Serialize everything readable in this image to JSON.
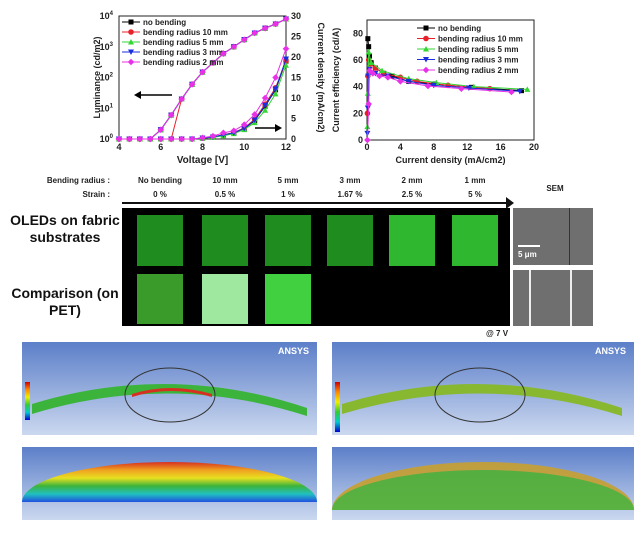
{
  "colors": {
    "no bending": "#000000",
    "bending radius 10 mm": "#e8202a",
    "bending radius 5 mm": "#33d633",
    "bending radius 3 mm": "#1a2ee0",
    "bending radius 2 mm": "#e830e8"
  },
  "chart_data": [
    {
      "type": "line",
      "xlabel": "Voltage [V]",
      "ylabel": "Luminance (cd/m2)",
      "y2label": "Current density (mA/cm2)",
      "xlim": [
        4,
        12
      ],
      "ylim": [
        1,
        10000
      ],
      "yscale": "log",
      "y2lim": [
        0,
        30
      ],
      "xticks": [
        "4",
        "6",
        "8",
        "10",
        "12"
      ],
      "yticks": [
        "10^0",
        "10^1",
        "10^2",
        "10^3",
        "10^4"
      ],
      "y2ticks": [
        "0",
        "5",
        "10",
        "15",
        "20",
        "25",
        "30"
      ],
      "legend": "top-left",
      "x": [
        4,
        4.5,
        5,
        5.5,
        6,
        6.5,
        7,
        7.5,
        8,
        8.5,
        9,
        9.5,
        10,
        10.5,
        11,
        11.5,
        12
      ],
      "series": [
        {
          "name": "no bending",
          "luminance": [
            1,
            1,
            1,
            1,
            2,
            6,
            20,
            60,
            150,
            300,
            600,
            1000,
            1700,
            2800,
            4000,
            5500,
            8000
          ],
          "current": [
            0,
            0,
            0,
            0,
            0,
            0,
            0,
            0,
            0.2,
            0.5,
            1,
            1.5,
            2.5,
            4.5,
            8,
            12,
            19
          ]
        },
        {
          "name": "bending radius 10 mm",
          "luminance": [
            1,
            1,
            1,
            1,
            1,
            1,
            20,
            60,
            150,
            300,
            600,
            1000,
            1700,
            2800,
            4000,
            5500,
            8000
          ],
          "current": [
            0,
            0,
            0,
            0,
            0,
            0,
            0,
            0,
            0.2,
            0.5,
            1,
            1.6,
            2.7,
            4.8,
            8.5,
            12.5,
            19
          ]
        },
        {
          "name": "bending radius 5 mm",
          "luminance": [
            1,
            1,
            1,
            1,
            2,
            6,
            20,
            60,
            150,
            300,
            600,
            1000,
            1700,
            2800,
            4000,
            5500,
            8000
          ],
          "current": [
            0,
            0,
            0,
            0,
            0,
            0,
            0,
            0,
            0.2,
            0.4,
            0.8,
            1.3,
            2.3,
            4,
            7,
            11,
            18
          ]
        },
        {
          "name": "bending radius 3 mm",
          "luminance": [
            1,
            1,
            1,
            1,
            2,
            6,
            20,
            60,
            150,
            300,
            600,
            1000,
            1700,
            2800,
            4000,
            5500,
            8000
          ],
          "current": [
            0,
            0,
            0,
            0,
            0,
            0,
            0,
            0,
            0.2,
            0.5,
            1,
            1.5,
            2.6,
            4.6,
            8.2,
            12.2,
            19.5
          ]
        },
        {
          "name": "bending radius 2 mm",
          "luminance": [
            1,
            1,
            1,
            1,
            2,
            6,
            20,
            60,
            150,
            300,
            600,
            1000,
            1700,
            2800,
            4000,
            5500,
            8000
          ],
          "current": [
            0,
            0,
            0,
            0,
            0,
            0,
            0,
            0,
            0.3,
            0.7,
            1.5,
            2,
            3.5,
            6,
            10,
            15,
            22
          ]
        }
      ],
      "annotations": [
        "left arrow → luminance axis",
        "right arrow → current density axis"
      ]
    },
    {
      "type": "line",
      "xlabel": "Current density (mA/cm2)",
      "ylabel": "Current efficiency (cd/A)",
      "xlim": [
        0,
        20
      ],
      "ylim": [
        0,
        90
      ],
      "xticks": [
        "0",
        "4",
        "8",
        "12",
        "16",
        "20"
      ],
      "yticks": [
        "0",
        "20",
        "40",
        "60",
        "80"
      ],
      "legend": "top-right",
      "series": [
        {
          "name": "no bending",
          "x": [
            0.1,
            0.2,
            0.3,
            0.5,
            1,
            2,
            3,
            5,
            8,
            12.5,
            18.5
          ],
          "y": [
            76,
            70,
            63,
            58,
            54,
            50,
            48,
            44,
            42,
            39.5,
            37
          ]
        },
        {
          "name": "bending radius 10 mm",
          "x": [
            0.05,
            0.1,
            0.2,
            0.4,
            1,
            2,
            4,
            6,
            9.7,
            14.7
          ],
          "y": [
            20,
            48,
            60,
            57,
            54,
            50,
            47,
            44,
            41,
            38.5
          ]
        },
        {
          "name": "bending radius 5 mm",
          "x": [
            0.05,
            0.1,
            0.2,
            0.5,
            1.8,
            5,
            8.3,
            12.8,
            19.2
          ],
          "y": [
            10,
            35,
            66,
            58,
            52,
            46,
            43,
            40,
            38
          ]
        },
        {
          "name": "bending radius 3 mm",
          "x": [
            0.05,
            0.1,
            0.15,
            0.3,
            1,
            2.5,
            5,
            8,
            12.2,
            18.3
          ],
          "y": [
            5,
            24,
            48,
            53,
            50,
            48,
            44,
            41,
            39,
            36.5
          ]
        },
        {
          "name": "bending radius 2 mm",
          "x": [
            0.05,
            0.2,
            0.3,
            0.7,
            1.5,
            2.5,
            4,
            7.3,
            11.3,
            17.3
          ],
          "y": [
            0,
            27,
            52,
            50,
            48,
            47,
            44,
            40.5,
            38.5,
            36
          ]
        }
      ]
    }
  ],
  "photo_panel": {
    "bending_radius_label": "Bending radius :",
    "strain_label": "Strain :",
    "columns": [
      {
        "radius": "No bending",
        "strain": "0 %"
      },
      {
        "radius": "10 mm",
        "strain": "0.5 %"
      },
      {
        "radius": "5 mm",
        "strain": "1 %"
      },
      {
        "radius": "3 mm",
        "strain": "1.67 %"
      },
      {
        "radius": "2 mm",
        "strain": "2.5 %"
      },
      {
        "radius": "1 mm",
        "strain": "5 %"
      }
    ],
    "row1": "OLEDs on fabric substrates",
    "row2": "Comparison (on PET)",
    "sem": "SEM",
    "scale": "5 μm",
    "voltage": "@ 7 V"
  },
  "simulation": {
    "left_logo": "ANSYS",
    "right_logo": "ANSYS"
  }
}
